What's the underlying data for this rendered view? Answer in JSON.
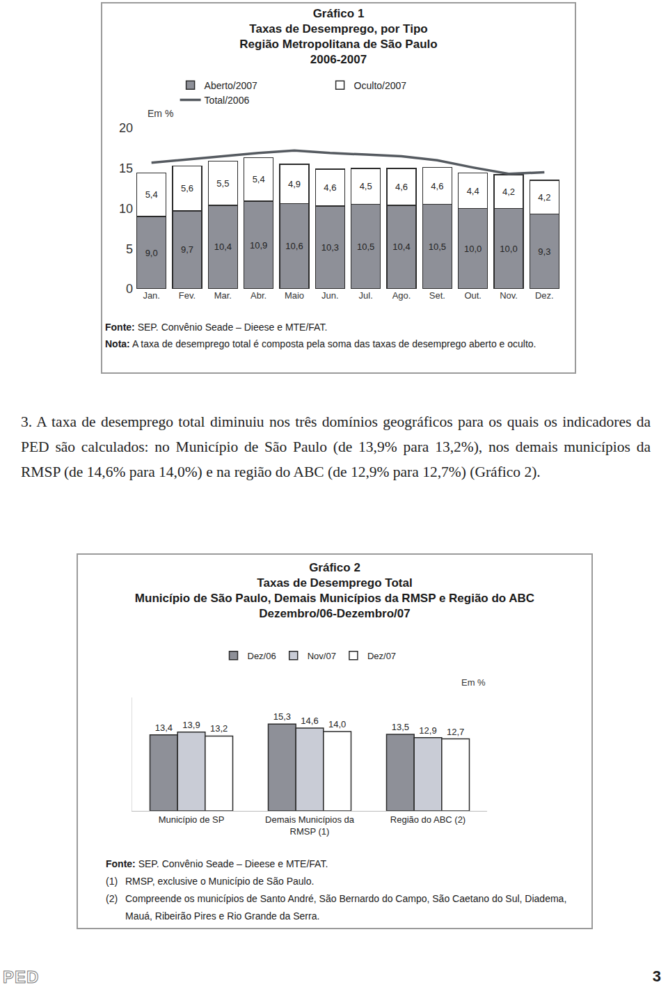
{
  "chart_data": [
    {
      "type": "bar",
      "title": "Gráfico 1",
      "subtitle": [
        "Taxas de Desemprego, por Tipo",
        "Região Metropolitana de São Paulo",
        "2006-2007"
      ],
      "annotations": [
        "Em %"
      ],
      "categories": [
        "Jan.",
        "Fev.",
        "Mar.",
        "Abr.",
        "Maio",
        "Jun.",
        "Jul.",
        "Ago.",
        "Set.",
        "Out.",
        "Nov.",
        "Dez."
      ],
      "stacked": true,
      "data_labels": true,
      "legend": "top",
      "grid": false,
      "ylim": [
        0,
        20
      ],
      "yticks": [
        0,
        5,
        10,
        15,
        20
      ],
      "series": [
        {
          "name": "Aberto/2007",
          "type": "bar",
          "color": "#8e9098",
          "values": [
            9.0,
            9.7,
            10.4,
            10.9,
            10.6,
            10.3,
            10.5,
            10.4,
            10.5,
            10.0,
            10.0,
            9.3
          ],
          "value_labels": [
            "9,0",
            "9,7",
            "10,4",
            "10,9",
            "10,6",
            "10,3",
            "10,5",
            "10,4",
            "10,5",
            "10,0",
            "10,0",
            "9,3"
          ]
        },
        {
          "name": "Oculto/2007",
          "type": "bar",
          "color": "#ffffff",
          "values": [
            5.4,
            5.6,
            5.5,
            5.4,
            4.9,
            4.6,
            4.5,
            4.6,
            4.6,
            4.4,
            4.2,
            4.2
          ],
          "value_labels": [
            "5,4",
            "5,6",
            "5,5",
            "5,4",
            "4,9",
            "4,6",
            "4,5",
            "4,6",
            "4,6",
            "4,4",
            "4,2",
            "4,2"
          ]
        },
        {
          "name": "Total/2006",
          "type": "line",
          "color": "#555a60",
          "line_style": "solid",
          "values": [
            15.7,
            16.1,
            16.5,
            16.9,
            17.2,
            16.9,
            16.7,
            16.5,
            16.0,
            15.1,
            14.3,
            14.5
          ]
        }
      ],
      "notes": [
        {
          "label": "Fonte:",
          "text": "SEP. Convênio Seade – Dieese e MTE/FAT."
        },
        {
          "label": "Nota:",
          "text": "A taxa de desemprego total é composta pela soma das taxas de desemprego aberto e oculto."
        }
      ]
    },
    {
      "type": "bar",
      "title": "Gráfico 2",
      "subtitle": [
        "Taxas de Desemprego Total",
        "Município de São Paulo, Demais Municípios da RMSP e Região do ABC",
        "Dezembro/06-Dezembro/07"
      ],
      "annotations": [
        "Em %"
      ],
      "categories": [
        "Município de SP",
        "Demais Municípios da\nRMSP (1)",
        "Região do ABC (2)"
      ],
      "data_labels": true,
      "legend": "top",
      "grid": false,
      "tick_labels": "x",
      "ylim": [
        0,
        20
      ],
      "series": [
        {
          "name": "Dez/06",
          "color": "#8e9098",
          "values": [
            13.4,
            15.3,
            13.5
          ],
          "value_labels": [
            "13,4",
            "15,3",
            "13,5"
          ]
        },
        {
          "name": "Nov/07",
          "color": "#c9ccd6",
          "values": [
            13.9,
            14.6,
            12.9
          ],
          "value_labels": [
            "13,9",
            "14,6",
            "12,9"
          ]
        },
        {
          "name": "Dez/07",
          "color": "#ffffff",
          "values": [
            13.2,
            14.0,
            12.7
          ],
          "value_labels": [
            "13,2",
            "14,0",
            "12,7"
          ]
        }
      ],
      "notes": [
        {
          "label": "Fonte:",
          "text": "SEP. Convênio Seade – Dieese e MTE/FAT."
        }
      ],
      "footnotes": [
        {
          "key": "(1)",
          "text": "RMSP, exclusive o Município de São Paulo."
        },
        {
          "key": "(2)",
          "text": "Compreende os municípios de Santo André, São Bernardo do Campo, São Caetano do Sul, Diadema, Mauá, Ribeirão Pires e Rio Grande da Serra."
        }
      ]
    }
  ],
  "paragraph": "3. A taxa de desemprego total diminuiu nos três domínios geográficos para os quais os indicadores da PED são calculados: no Município de São Paulo (de 13,9% para 13,2%), nos demais municípios da RMSP (de 14,6% para 14,0%) e na região do ABC (de 12,9% para 12,7%) (Gráfico 2).",
  "footer": {
    "left": "PED",
    "page": "3"
  }
}
